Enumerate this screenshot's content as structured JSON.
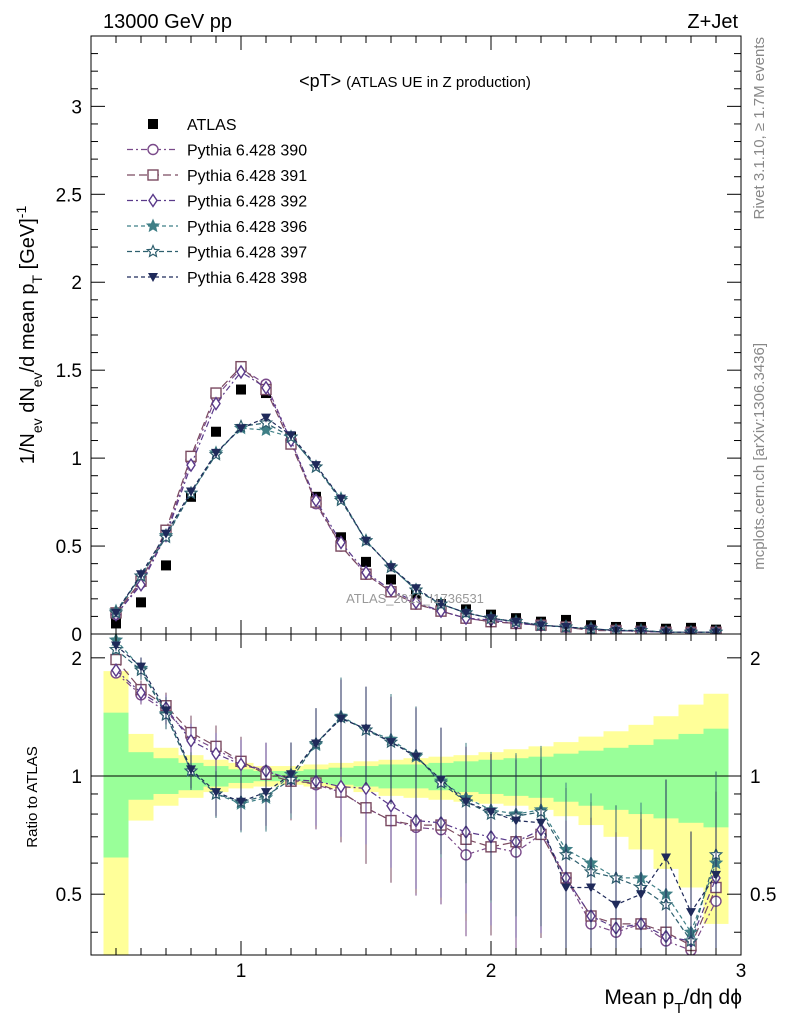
{
  "header": {
    "left": "13000 GeV pp",
    "right": "Z+Jet",
    "title_main": "<pT>",
    "title_sub": "(ATLAS UE in Z production)"
  },
  "side_labels": {
    "rivet": "Rivet 3.1.10, ≥ 1.7M events",
    "mcplots": "mcplots.cern.ch [arXiv:1306.3436]"
  },
  "watermark": "ATLAS_2019_I1736531",
  "axes": {
    "ylabel_top": "1/N_ev dN_ev/d mean p_T [GeV]^-1",
    "ylabel_bottom": "Ratio to ATLAS",
    "xlabel": "Mean p_T/dη dϕ"
  },
  "chart_data": [
    {
      "type": "scatter",
      "panel": "main",
      "xlim": [
        0.4,
        3.0
      ],
      "ylim": [
        0,
        3.4
      ],
      "x_ticks": [
        "1",
        "2",
        "3"
      ],
      "y_ticks": [
        "0",
        "0.5",
        "1",
        "1.5",
        "2",
        "2.5",
        "3"
      ],
      "legend_position": "top-left",
      "x": [
        0.5,
        0.6,
        0.7,
        0.8,
        0.9,
        1.0,
        1.1,
        1.2,
        1.3,
        1.4,
        1.5,
        1.6,
        1.7,
        1.8,
        1.9,
        2.0,
        2.1,
        2.2,
        2.3,
        2.4,
        2.5,
        2.6,
        2.7,
        2.8,
        2.9
      ],
      "series": [
        {
          "name": "ATLAS",
          "marker": "filled-square",
          "color": "#000000",
          "values": [
            0.06,
            0.18,
            0.39,
            0.78,
            1.15,
            1.39,
            1.37,
            1.12,
            0.78,
            0.55,
            0.41,
            0.31,
            0.23,
            0.17,
            0.14,
            0.11,
            0.09,
            0.07,
            0.08,
            0.05,
            0.04,
            0.04,
            0.03,
            0.035,
            0.025
          ]
        },
        {
          "name": "Pythia 6.428 390",
          "marker": "open-circle",
          "color": "#7a4a8a",
          "dash": "6,3,2,3",
          "values": [
            0.11,
            0.29,
            0.57,
            0.99,
            1.35,
            1.51,
            1.42,
            1.1,
            0.74,
            0.5,
            0.34,
            0.24,
            0.17,
            0.13,
            0.09,
            0.07,
            0.06,
            0.05,
            0.04,
            0.02,
            0.02,
            0.015,
            0.01,
            0.01,
            0.01
          ]
        },
        {
          "name": "Pythia 6.428 391",
          "marker": "open-square",
          "color": "#7a4a60",
          "dash": "8,4",
          "values": [
            0.12,
            0.3,
            0.59,
            1.01,
            1.37,
            1.52,
            1.39,
            1.08,
            0.75,
            0.5,
            0.34,
            0.24,
            0.17,
            0.13,
            0.09,
            0.07,
            0.06,
            0.05,
            0.04,
            0.02,
            0.02,
            0.015,
            0.01,
            0.01,
            0.01
          ]
        },
        {
          "name": "Pythia 6.428 392",
          "marker": "open-diamond",
          "color": "#5a3a8a",
          "dash": "6,3,2,3",
          "values": [
            0.11,
            0.28,
            0.56,
            0.96,
            1.31,
            1.49,
            1.4,
            1.1,
            0.76,
            0.52,
            0.35,
            0.25,
            0.18,
            0.13,
            0.09,
            0.08,
            0.06,
            0.05,
            0.04,
            0.03,
            0.02,
            0.015,
            0.01,
            0.01,
            0.01
          ]
        },
        {
          "name": "Pythia 6.428 396",
          "marker": "filled-star",
          "color": "#3f7f86",
          "dash": "4,3",
          "values": [
            0.13,
            0.33,
            0.56,
            0.8,
            1.03,
            1.17,
            1.16,
            1.12,
            0.95,
            0.77,
            0.53,
            0.38,
            0.25,
            0.17,
            0.12,
            0.09,
            0.07,
            0.05,
            0.04,
            0.03,
            0.02,
            0.02,
            0.01,
            0.01,
            0.01
          ]
        },
        {
          "name": "Pythia 6.428 397",
          "marker": "open-star",
          "color": "#2e5f6e",
          "dash": "5,3",
          "values": [
            0.12,
            0.33,
            0.55,
            0.8,
            1.02,
            1.18,
            1.2,
            1.12,
            0.95,
            0.76,
            0.53,
            0.38,
            0.25,
            0.17,
            0.12,
            0.09,
            0.07,
            0.05,
            0.04,
            0.03,
            0.02,
            0.02,
            0.01,
            0.01,
            0.01
          ]
        },
        {
          "name": "Pythia 6.428 398",
          "marker": "filled-triangle-down",
          "color": "#1f2a5a",
          "dash": "4,3",
          "values": [
            0.12,
            0.34,
            0.57,
            0.81,
            1.03,
            1.17,
            1.23,
            1.13,
            0.96,
            0.77,
            0.53,
            0.38,
            0.26,
            0.17,
            0.12,
            0.09,
            0.07,
            0.05,
            0.04,
            0.03,
            0.02,
            0.02,
            0.01,
            0.01,
            0.01
          ]
        }
      ]
    },
    {
      "type": "scatter",
      "panel": "ratio",
      "xlim": [
        0.4,
        3.0
      ],
      "ylim": [
        0.35,
        2.3
      ],
      "x_ticks": [
        "1",
        "2",
        "3"
      ],
      "y_ticks": [
        "0.5",
        "1",
        "2"
      ],
      "reference_line": 1,
      "x": [
        0.5,
        0.6,
        0.7,
        0.8,
        0.9,
        1.0,
        1.1,
        1.2,
        1.3,
        1.4,
        1.5,
        1.6,
        1.7,
        1.8,
        1.9,
        2.0,
        2.1,
        2.2,
        2.3,
        2.4,
        2.5,
        2.6,
        2.7,
        2.8,
        2.9
      ],
      "band_edges": [
        0.45,
        0.55,
        0.65,
        0.75,
        0.85,
        0.95,
        1.05,
        1.15,
        1.25,
        1.35,
        1.45,
        1.55,
        1.65,
        1.75,
        1.85,
        1.95,
        2.05,
        2.15,
        2.25,
        2.35,
        2.45,
        2.55,
        2.65,
        2.75,
        2.85,
        2.95
      ],
      "band_stat_low": [
        0.62,
        0.87,
        0.9,
        0.92,
        0.94,
        0.96,
        0.97,
        0.97,
        0.96,
        0.95,
        0.94,
        0.93,
        0.93,
        0.92,
        0.91,
        0.9,
        0.89,
        0.88,
        0.86,
        0.84,
        0.82,
        0.8,
        0.78,
        0.76,
        0.74
      ],
      "band_stat_high": [
        1.45,
        1.15,
        1.11,
        1.08,
        1.06,
        1.04,
        1.03,
        1.03,
        1.04,
        1.05,
        1.06,
        1.07,
        1.07,
        1.08,
        1.09,
        1.1,
        1.11,
        1.12,
        1.14,
        1.16,
        1.18,
        1.2,
        1.24,
        1.28,
        1.32
      ],
      "band_total_low": [
        0.35,
        0.77,
        0.84,
        0.88,
        0.91,
        0.93,
        0.94,
        0.95,
        0.94,
        0.93,
        0.91,
        0.89,
        0.88,
        0.87,
        0.86,
        0.85,
        0.84,
        0.82,
        0.79,
        0.75,
        0.7,
        0.65,
        0.58,
        0.52,
        0.42
      ],
      "band_total_high": [
        1.85,
        1.28,
        1.18,
        1.13,
        1.1,
        1.08,
        1.06,
        1.06,
        1.07,
        1.08,
        1.09,
        1.1,
        1.11,
        1.12,
        1.13,
        1.15,
        1.17,
        1.19,
        1.22,
        1.26,
        1.3,
        1.35,
        1.42,
        1.52,
        1.62
      ],
      "series": [
        {
          "name": "Pythia 6.428 390",
          "values": [
            1.83,
            1.61,
            1.46,
            1.26,
            1.17,
            1.08,
            1.03,
            0.98,
            0.95,
            0.91,
            0.83,
            0.77,
            0.74,
            0.73,
            0.63,
            0.66,
            0.64,
            0.71,
            0.55,
            0.42,
            0.4,
            0.42,
            0.38,
            0.36,
            0.48
          ]
        },
        {
          "name": "Pythia 6.428 391",
          "values": [
            1.98,
            1.66,
            1.51,
            1.29,
            1.19,
            1.09,
            1.01,
            0.97,
            0.96,
            0.91,
            0.83,
            0.77,
            0.75,
            0.75,
            0.69,
            0.66,
            0.68,
            0.71,
            0.55,
            0.44,
            0.42,
            0.42,
            0.4,
            0.37,
            0.52
          ]
        },
        {
          "name": "Pythia 6.428 392",
          "values": [
            1.86,
            1.63,
            1.49,
            1.23,
            1.14,
            1.07,
            1.03,
            0.98,
            0.97,
            0.94,
            0.93,
            0.84,
            0.77,
            0.76,
            0.72,
            0.7,
            0.68,
            0.73,
            0.55,
            0.44,
            0.41,
            0.42,
            0.39,
            0.38,
            0.55
          ]
        },
        {
          "name": "Pythia 6.428 396",
          "values": [
            2.22,
            1.88,
            1.44,
            1.03,
            0.9,
            0.85,
            0.88,
            1.01,
            1.2,
            1.42,
            1.31,
            1.24,
            1.12,
            0.97,
            0.88,
            0.82,
            0.8,
            0.82,
            0.65,
            0.6,
            0.55,
            0.55,
            0.5,
            0.4,
            0.6
          ]
        },
        {
          "name": "Pythia 6.428 397",
          "values": [
            2.1,
            1.86,
            1.43,
            1.03,
            0.9,
            0.86,
            0.89,
            0.98,
            1.21,
            1.41,
            1.31,
            1.22,
            1.13,
            0.96,
            0.86,
            0.8,
            0.79,
            0.81,
            0.63,
            0.57,
            0.55,
            0.52,
            0.47,
            0.38,
            0.63
          ]
        },
        {
          "name": "Pythia 6.428 398",
          "values": [
            2.15,
            1.9,
            1.47,
            1.04,
            0.91,
            0.86,
            0.91,
            1.01,
            1.21,
            1.4,
            1.32,
            1.22,
            1.12,
            0.98,
            0.86,
            0.81,
            0.77,
            0.76,
            0.52,
            0.52,
            0.47,
            0.5,
            0.62,
            0.45,
            0.56
          ]
        }
      ]
    }
  ]
}
